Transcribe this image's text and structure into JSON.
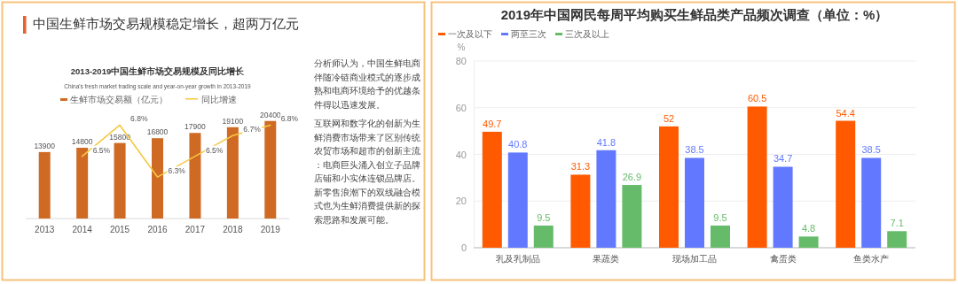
{
  "chart_data": [
    {
      "type": "other",
      "title": "中国生鲜市场交易规模稳定增长，超两万亿元",
      "annotations": [
        "分析师认为，中国生鲜电商伴随冷链商业模式的逐步成熟和电商环境给予的优越条件得以迅速发展。",
        "互联网和数字化的创新为生鲜消费市场带来了区别传统农贸市场和超市的创新主流：电商巨头涌入创立子品牌店铺和小实体连锁品牌店。新零售浪潮下的双线融合模式也为生鲜消费提供新的探索思路和发展可能。"
      ]
    },
    {
      "type": "bar",
      "title": "2013-2019中国生鲜市场交易规模及同比增长",
      "subtitle": "China's fresh market trading scale and year-on-year growth in 2013-2019",
      "categories": [
        "2013",
        "2014",
        "2015",
        "2016",
        "2017",
        "2018",
        "2019"
      ],
      "series": [
        {
          "name": "生鲜市场交易额（亿元）",
          "color": "#cf6a25",
          "values": [
            13900,
            14800,
            15800,
            16800,
            17900,
            19100,
            20400
          ],
          "value_labels": [
            "13900",
            "14800",
            "15800",
            "16800",
            "17900",
            "19100",
            "20400"
          ]
        },
        {
          "name": "同比增速",
          "type": "line",
          "axis": "y2",
          "color": "#f5c842",
          "values": [
            null,
            6.5,
            6.8,
            6.3,
            6.5,
            6.7,
            6.8
          ],
          "value_labels": [
            null,
            "6.5%",
            "6.8%",
            "6.3%",
            "6.5%",
            "6.7%",
            "6.8%"
          ]
        }
      ],
      "legend": "top",
      "tick_labels": "x",
      "grid": false
    },
    {
      "type": "bar",
      "title": "2019年中国网民每周平均购买生鲜品类产品频次调查（单位：%）",
      "ylabel": "%",
      "categories": [
        "乳及乳制品",
        "果蔬类",
        "现场加工品",
        "禽蛋类",
        "鱼类水产"
      ],
      "series": [
        {
          "name": "一次及以下",
          "color": "#ff5a00",
          "values": [
            49.7,
            31.3,
            52,
            60.5,
            54.4
          ]
        },
        {
          "name": "两至三次",
          "color": "#6279ff",
          "values": [
            40.8,
            41.8,
            38.5,
            34.7,
            38.5
          ]
        },
        {
          "name": "三次及以上",
          "color": "#66bb6a",
          "values": [
            9.5,
            26.9,
            9.5,
            4.8,
            7.1
          ]
        }
      ],
      "ylim": [
        0,
        80
      ],
      "yticks": [
        0,
        20,
        40,
        60,
        80
      ],
      "grid": "y",
      "legend": "top left",
      "data_labels": true
    }
  ]
}
